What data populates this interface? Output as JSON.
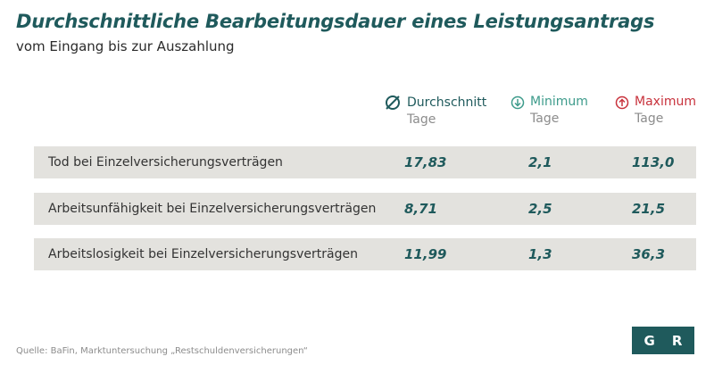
{
  "chart_data": {
    "type": "table",
    "title": "Durchschnittliche Bearbeitungsdauer eines Leistungsantrags",
    "subtitle": "vom Eingang bis zur Auszahlung",
    "columns": [
      {
        "label": "Durchschnitt",
        "unit": "Tage",
        "icon": "average-icon",
        "color": "#1f5a5c"
      },
      {
        "label": "Minimum",
        "unit": "Tage",
        "icon": "arrow-down-circle-icon",
        "color": "#3d9b8b"
      },
      {
        "label": "Maximum",
        "unit": "Tage",
        "icon": "arrow-up-circle-icon",
        "color": "#c8323c"
      }
    ],
    "rows": [
      {
        "label": "Tod bei Einzelversicherungsverträgen",
        "values": [
          "17,83",
          "2,1",
          "113,0"
        ]
      },
      {
        "label": "Arbeitsunfähigkeit bei Einzelversicherungsverträgen",
        "values": [
          "8,71",
          "2,5",
          "21,5"
        ]
      },
      {
        "label": "Arbeitslosigkeit bei Einzelversicherungsverträgen",
        "values": [
          "11,99",
          "1,3",
          "36,3"
        ]
      }
    ],
    "source": "Quelle: BaFin, Marktuntersuchung „Restschuldenversicherungen“"
  },
  "logo": {
    "left": "G",
    "right": "R",
    "color": "#1f5a5c"
  },
  "colors": {
    "row_background": "#e3e2de",
    "value_text": "#1f5a5c"
  }
}
